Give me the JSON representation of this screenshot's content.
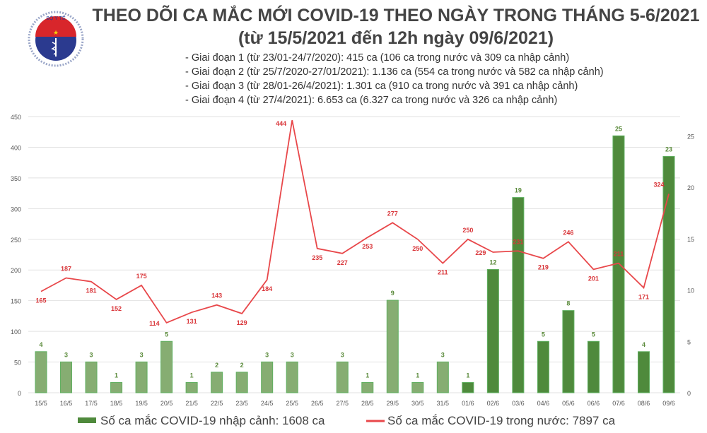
{
  "header": {
    "logo_text": "BỘ Y TẾ - MINISTRY OF HEALTH",
    "title": "THEO DÕI CA MẮC MỚI COVID-19 THEO NGÀY TRONG THÁNG 5-6/2021",
    "subtitle": "(từ 15/5/2021 đến 12h ngày 09/6/2021)",
    "notes": [
      "- Giai đoạn 1 (từ 23/01-24/7/2020): 415 ca (106 ca trong nước và 309 ca nhập cảnh)",
      "- Giai đoạn 2 (từ 25/7/2020-27/01/2021): 1.136 ca (554 ca trong nước và 582 ca nhập cảnh)",
      "- Giai đoạn 3 (từ 28/01-26/4/2021): 1.301 ca (910 ca trong nước và 391 ca nhập cảnh)",
      "- Giai đoạn 4 (từ 27/4/2021): 6.653 ca (6.327 ca trong nước và 326 ca nhập cảnh)"
    ]
  },
  "chart_data": {
    "type": "bar+line",
    "categories": [
      "15/5",
      "16/5",
      "17/5",
      "18/5",
      "19/5",
      "20/5",
      "21/5",
      "22/5",
      "23/5",
      "24/5",
      "25/5",
      "26/5",
      "27/5",
      "28/5",
      "29/5",
      "30/5",
      "31/5",
      "01/6",
      "02/6",
      "03/6",
      "04/6",
      "05/6",
      "06/6",
      "07/6",
      "08/6",
      "09/6"
    ],
    "series": [
      {
        "name": "Số ca mắc COVID-19 nhập cảnh: 1608 ca",
        "type": "bar",
        "axis": "right",
        "color": "#6a9a55",
        "values": [
          4,
          3,
          3,
          1,
          3,
          5,
          1,
          2,
          2,
          3,
          3,
          0,
          3,
          1,
          9,
          1,
          3,
          1,
          12,
          19,
          5,
          8,
          5,
          25,
          4,
          23
        ]
      },
      {
        "name": "Số ca mắc COVID-19 trong nước: 7897 ca",
        "type": "line",
        "axis": "left",
        "color": "#e8474a",
        "values": [
          165,
          187,
          181,
          152,
          175,
          114,
          131,
          143,
          129,
          184,
          444,
          235,
          227,
          253,
          277,
          250,
          211,
          250,
          229,
          231,
          219,
          246,
          201,
          211,
          171,
          324
        ]
      }
    ],
    "y_left": {
      "ylim": [
        0,
        450
      ],
      "ticks": [
        0,
        50,
        100,
        150,
        200,
        250,
        300,
        350,
        400,
        450
      ]
    },
    "y_right": {
      "ylim": [
        0,
        25
      ],
      "ticks": [
        0,
        5,
        10,
        15,
        20,
        25
      ]
    },
    "grid": true,
    "legend": "bottom"
  }
}
